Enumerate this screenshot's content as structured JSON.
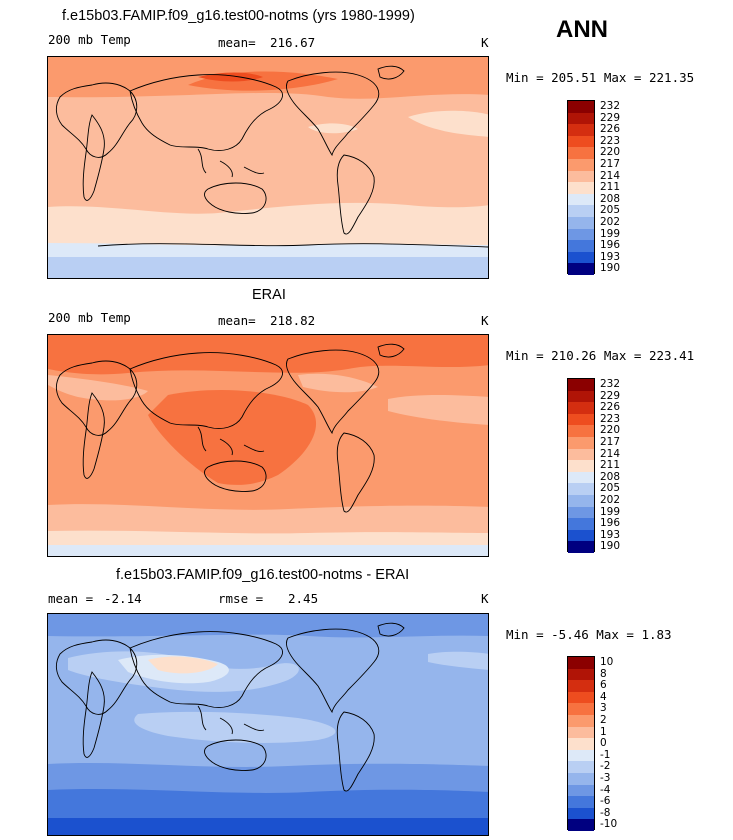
{
  "season": "ANN",
  "panels": [
    {
      "title": "f.e15b03.FAMIP.f09_g16.test00-notms (yrs 1980-1999)",
      "left_label": "200 mb Temp",
      "stat_label": "mean=",
      "stat_value": "216.67",
      "unit": "K",
      "minmax": "Min = 205.51 Max = 221.35",
      "colorbar_levels": [
        "232",
        "229",
        "226",
        "223",
        "220",
        "217",
        "214",
        "211",
        "208",
        "205",
        "202",
        "199",
        "196",
        "193",
        "190"
      ]
    },
    {
      "title": "ERAI",
      "left_label": "200 mb Temp",
      "stat_label": "mean=",
      "stat_value": "218.82",
      "unit": "K",
      "minmax": "Min = 210.26 Max = 223.41",
      "colorbar_levels": [
        "232",
        "229",
        "226",
        "223",
        "220",
        "217",
        "214",
        "211",
        "208",
        "205",
        "202",
        "199",
        "196",
        "193",
        "190"
      ]
    },
    {
      "title": "f.e15b03.FAMIP.f09_g16.test00-notms - ERAI",
      "left_label": "mean =",
      "left_value": "-2.14",
      "stat_label": "rmse =",
      "stat_value": "2.45",
      "unit": "K",
      "minmax": "Min = -5.46 Max = 1.83",
      "colorbar_levels": [
        "10",
        "8",
        "6",
        "4",
        "3",
        "2",
        "1",
        "0",
        "-1",
        "-2",
        "-3",
        "-4",
        "-6",
        "-8",
        "-10"
      ]
    }
  ],
  "palette": [
    "#8b0000",
    "#b01406",
    "#d42e10",
    "#ee4d1f",
    "#f77240",
    "#fb9a6d",
    "#fcbc9d",
    "#fde0cc",
    "#dde9f8",
    "#b9cff3",
    "#95b5ec",
    "#6e97e4",
    "#4477dc",
    "#1b51cf",
    "#0a1fa5",
    "#000080"
  ]
}
